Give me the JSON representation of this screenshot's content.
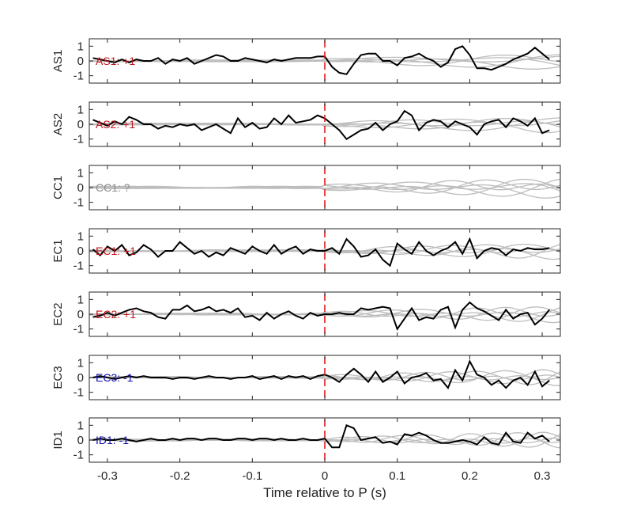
{
  "chart_data": {
    "type": "line",
    "xlabel": "Time relative to P (s)",
    "xlim": [
      -0.325,
      0.325
    ],
    "xticks": [
      -0.3,
      -0.2,
      -0.1,
      0,
      0.1,
      0.2,
      0.3
    ],
    "xtick_labels": [
      "-0.3",
      "-0.2",
      "-0.1",
      "0",
      "0.1",
      "0.2",
      "0.3"
    ],
    "ylim": [
      -1.5,
      1.5
    ],
    "yticks": [
      -1,
      0,
      1
    ],
    "ytick_labels": [
      "-1",
      "0",
      "1"
    ],
    "marker_time": 0,
    "colors": {
      "trace": "#000000",
      "background": "#bdbdbd",
      "marker": "#e41a1c",
      "positive": "#c0161c",
      "negative": "#1010b0",
      "unknown": "#8c8c8c"
    },
    "panels": [
      {
        "ylabel": "AS1",
        "label": "AS1: +1",
        "polarity": "positive",
        "x": [
          -0.32,
          -0.31,
          -0.3,
          -0.29,
          -0.28,
          -0.27,
          -0.26,
          -0.25,
          -0.24,
          -0.23,
          -0.22,
          -0.21,
          -0.2,
          -0.19,
          -0.18,
          -0.17,
          -0.16,
          -0.15,
          -0.14,
          -0.13,
          -0.12,
          -0.11,
          -0.1,
          -0.09,
          -0.08,
          -0.07,
          -0.06,
          -0.05,
          -0.04,
          -0.03,
          -0.02,
          -0.01,
          0.0,
          0.01,
          0.02,
          0.03,
          0.04,
          0.05,
          0.06,
          0.07,
          0.08,
          0.09,
          0.1,
          0.11,
          0.12,
          0.13,
          0.14,
          0.15,
          0.16,
          0.17,
          0.18,
          0.19,
          0.2,
          0.21,
          0.22,
          0.23,
          0.24,
          0.25,
          0.26,
          0.27,
          0.28,
          0.29,
          0.3,
          0.31
        ],
        "y": [
          0.2,
          0.1,
          0.0,
          -0.1,
          0.1,
          -0.1,
          0.1,
          0.0,
          0.0,
          0.2,
          -0.2,
          0.1,
          0.0,
          0.2,
          -0.2,
          0.0,
          0.2,
          0.4,
          0.3,
          0.0,
          0.0,
          0.2,
          0.1,
          0.0,
          -0.1,
          0.1,
          0.0,
          0.1,
          0.2,
          0.2,
          0.2,
          0.3,
          0.3,
          -0.4,
          -0.8,
          -0.9,
          -0.2,
          0.4,
          0.5,
          0.5,
          0.0,
          0.0,
          -0.3,
          0.2,
          0.3,
          0.5,
          0.2,
          0.0,
          -0.4,
          -0.1,
          0.8,
          1.0,
          0.4,
          -0.5,
          -0.5,
          -0.6,
          -0.4,
          -0.2,
          0.1,
          0.3,
          0.5,
          0.9,
          0.5,
          0.1
        ]
      },
      {
        "ylabel": "AS2",
        "label": "AS2: +1",
        "polarity": "positive",
        "x": [
          -0.32,
          -0.31,
          -0.3,
          -0.29,
          -0.28,
          -0.27,
          -0.26,
          -0.25,
          -0.24,
          -0.23,
          -0.22,
          -0.21,
          -0.2,
          -0.19,
          -0.18,
          -0.17,
          -0.16,
          -0.15,
          -0.14,
          -0.13,
          -0.12,
          -0.11,
          -0.1,
          -0.09,
          -0.08,
          -0.07,
          -0.06,
          -0.05,
          -0.04,
          -0.03,
          -0.02,
          -0.01,
          0.0,
          0.01,
          0.02,
          0.03,
          0.04,
          0.05,
          0.06,
          0.07,
          0.08,
          0.09,
          0.1,
          0.11,
          0.12,
          0.13,
          0.14,
          0.15,
          0.16,
          0.17,
          0.18,
          0.19,
          0.2,
          0.21,
          0.22,
          0.23,
          0.24,
          0.25,
          0.26,
          0.27,
          0.28,
          0.29,
          0.3,
          0.31
        ],
        "y": [
          0.3,
          0.1,
          -0.1,
          0.2,
          0.0,
          0.5,
          0.3,
          0.0,
          0.0,
          -0.3,
          -0.1,
          -0.2,
          0.0,
          -0.1,
          0.0,
          -0.4,
          -0.2,
          0.0,
          -0.3,
          -0.6,
          0.4,
          -0.2,
          0.1,
          -0.3,
          -0.2,
          0.4,
          0.0,
          0.6,
          0.1,
          0.2,
          0.3,
          0.6,
          0.4,
          0.0,
          -0.4,
          -1.0,
          -0.7,
          -0.4,
          -0.3,
          0.1,
          -0.4,
          0.0,
          0.2,
          0.9,
          0.6,
          -0.4,
          0.1,
          0.3,
          0.2,
          -0.2,
          0.2,
          0.0,
          -0.2,
          -0.7,
          0.0,
          0.2,
          0.3,
          -0.2,
          0.4,
          0.2,
          -0.1,
          0.4,
          -0.6,
          -0.4
        ]
      },
      {
        "ylabel": "CC1",
        "label": "CC1: ?",
        "polarity": "unknown",
        "x": [],
        "y": []
      },
      {
        "ylabel": "EC1",
        "label": "EC1: +1",
        "polarity": "positive",
        "x": [
          -0.32,
          -0.31,
          -0.3,
          -0.29,
          -0.28,
          -0.27,
          -0.26,
          -0.25,
          -0.24,
          -0.23,
          -0.22,
          -0.21,
          -0.2,
          -0.19,
          -0.18,
          -0.17,
          -0.16,
          -0.15,
          -0.14,
          -0.13,
          -0.12,
          -0.11,
          -0.1,
          -0.09,
          -0.08,
          -0.07,
          -0.06,
          -0.05,
          -0.04,
          -0.03,
          -0.02,
          -0.01,
          0.0,
          0.01,
          0.02,
          0.03,
          0.04,
          0.05,
          0.06,
          0.07,
          0.08,
          0.09,
          0.1,
          0.11,
          0.12,
          0.13,
          0.14,
          0.15,
          0.16,
          0.17,
          0.18,
          0.19,
          0.2,
          0.21,
          0.22,
          0.23,
          0.24,
          0.25,
          0.26,
          0.27,
          0.28,
          0.29,
          0.3,
          0.31
        ],
        "y": [
          0.1,
          -0.3,
          0.3,
          0.0,
          0.4,
          -0.3,
          -0.1,
          0.4,
          0.1,
          -0.4,
          0.0,
          0.0,
          0.6,
          0.2,
          -0.2,
          0.0,
          -0.4,
          -0.1,
          -0.3,
          0.2,
          0.0,
          -0.2,
          0.3,
          0.0,
          -0.2,
          0.4,
          -0.2,
          0.1,
          0.3,
          -0.2,
          0.1,
          0.0,
          0.0,
          0.2,
          -0.2,
          0.8,
          0.3,
          -0.4,
          -0.3,
          0.1,
          -0.6,
          -1.0,
          0.5,
          0.1,
          -0.2,
          0.6,
          0.0,
          -0.3,
          0.0,
          0.2,
          0.6,
          -0.2,
          0.8,
          -0.5,
          0.0,
          0.2,
          0.1,
          -0.3,
          0.1,
          0.0,
          0.2,
          0.1,
          0.1,
          0.2
        ]
      },
      {
        "ylabel": "EC2",
        "label": "EC2: +1",
        "polarity": "positive",
        "x": [
          -0.32,
          -0.31,
          -0.3,
          -0.29,
          -0.28,
          -0.27,
          -0.26,
          -0.25,
          -0.24,
          -0.23,
          -0.22,
          -0.21,
          -0.2,
          -0.19,
          -0.18,
          -0.17,
          -0.16,
          -0.15,
          -0.14,
          -0.13,
          -0.12,
          -0.11,
          -0.1,
          -0.09,
          -0.08,
          -0.07,
          -0.06,
          -0.05,
          -0.04,
          -0.03,
          -0.02,
          -0.01,
          0.0,
          0.01,
          0.02,
          0.03,
          0.04,
          0.05,
          0.06,
          0.07,
          0.08,
          0.09,
          0.1,
          0.11,
          0.12,
          0.13,
          0.14,
          0.15,
          0.16,
          0.17,
          0.18,
          0.19,
          0.2,
          0.21,
          0.22,
          0.23,
          0.24,
          0.25,
          0.26,
          0.27,
          0.28,
          0.29,
          0.3,
          0.31
        ],
        "y": [
          -0.2,
          -0.1,
          0.1,
          -0.1,
          0.1,
          0.3,
          0.4,
          0.2,
          0.1,
          -0.2,
          -0.3,
          0.3,
          0.3,
          0.6,
          0.2,
          0.3,
          0.5,
          0.2,
          0.3,
          0.1,
          0.4,
          -0.2,
          -0.1,
          -0.4,
          0.1,
          -0.3,
          0.0,
          0.2,
          -0.1,
          -0.3,
          0.1,
          -0.1,
          0.0,
          0.0,
          0.1,
          0.0,
          0.0,
          0.4,
          0.3,
          0.4,
          0.5,
          0.4,
          -1.0,
          -0.3,
          0.4,
          -0.4,
          -0.2,
          -0.3,
          0.3,
          0.5,
          -0.9,
          0.3,
          0.8,
          0.4,
          0.2,
          -0.1,
          -0.4,
          0.3,
          -0.3,
          0.0,
          0.1,
          -0.7,
          -0.3,
          0.3
        ]
      },
      {
        "ylabel": "EC3",
        "label": "EC3: -1",
        "polarity": "negative",
        "x": [
          -0.32,
          -0.31,
          -0.3,
          -0.29,
          -0.28,
          -0.27,
          -0.26,
          -0.25,
          -0.24,
          -0.23,
          -0.22,
          -0.21,
          -0.2,
          -0.19,
          -0.18,
          -0.17,
          -0.16,
          -0.15,
          -0.14,
          -0.13,
          -0.12,
          -0.11,
          -0.1,
          -0.09,
          -0.08,
          -0.07,
          -0.06,
          -0.05,
          -0.04,
          -0.03,
          -0.02,
          -0.01,
          0.0,
          0.01,
          0.02,
          0.03,
          0.04,
          0.05,
          0.06,
          0.07,
          0.08,
          0.09,
          0.1,
          0.11,
          0.12,
          0.13,
          0.14,
          0.15,
          0.16,
          0.17,
          0.18,
          0.19,
          0.2,
          0.21,
          0.22,
          0.23,
          0.24,
          0.25,
          0.26,
          0.27,
          0.28,
          0.29,
          0.3,
          0.31
        ],
        "y": [
          0.0,
          0.1,
          0.0,
          -0.1,
          0.0,
          0.1,
          0.0,
          0.1,
          0.0,
          0.0,
          0.0,
          -0.1,
          0.0,
          0.0,
          -0.1,
          0.0,
          0.1,
          0.0,
          0.0,
          -0.1,
          0.0,
          0.0,
          0.1,
          -0.1,
          0.0,
          0.1,
          -0.1,
          0.1,
          0.0,
          0.1,
          -0.1,
          0.1,
          0.2,
          0.0,
          -0.3,
          0.2,
          0.6,
          0.2,
          -0.3,
          0.4,
          -0.3,
          0.0,
          0.4,
          -0.4,
          0.0,
          0.1,
          0.3,
          -0.2,
          -0.1,
          -0.7,
          0.5,
          -0.2,
          1.1,
          0.2,
          0.0,
          -0.5,
          -0.2,
          -0.7,
          -0.2,
          0.0,
          -0.5,
          0.4,
          -0.6,
          -0.2
        ]
      },
      {
        "ylabel": "ID1",
        "label": "ID1: -1",
        "polarity": "negative",
        "x": [
          -0.32,
          -0.31,
          -0.3,
          -0.29,
          -0.28,
          -0.27,
          -0.26,
          -0.25,
          -0.24,
          -0.23,
          -0.22,
          -0.21,
          -0.2,
          -0.19,
          -0.18,
          -0.17,
          -0.16,
          -0.15,
          -0.14,
          -0.13,
          -0.12,
          -0.11,
          -0.1,
          -0.09,
          -0.08,
          -0.07,
          -0.06,
          -0.05,
          -0.04,
          -0.03,
          -0.02,
          -0.01,
          0.0,
          0.01,
          0.02,
          0.03,
          0.04,
          0.05,
          0.06,
          0.07,
          0.08,
          0.09,
          0.1,
          0.11,
          0.12,
          0.13,
          0.14,
          0.15,
          0.16,
          0.17,
          0.18,
          0.19,
          0.2,
          0.21,
          0.22,
          0.23,
          0.24,
          0.25,
          0.26,
          0.27,
          0.28,
          0.29,
          0.3,
          0.31
        ],
        "y": [
          0.0,
          0.1,
          0.0,
          0.0,
          0.1,
          0.0,
          -0.1,
          0.0,
          0.1,
          0.0,
          0.0,
          0.1,
          0.0,
          0.1,
          0.1,
          0.0,
          0.1,
          0.1,
          0.0,
          0.0,
          0.1,
          0.1,
          0.0,
          0.1,
          0.1,
          0.0,
          0.1,
          0.0,
          0.0,
          0.1,
          0.0,
          0.0,
          0.1,
          -0.5,
          -0.5,
          1.0,
          0.8,
          0.0,
          0.1,
          0.2,
          -0.2,
          -0.1,
          -0.3,
          0.4,
          0.3,
          0.5,
          0.3,
          0.0,
          -0.2,
          -0.2,
          -0.1,
          0.0,
          -0.1,
          -0.3,
          0.2,
          -0.2,
          -0.3,
          0.5,
          -0.1,
          -0.2,
          0.5,
          0.1,
          0.3,
          -0.1
        ]
      }
    ]
  }
}
